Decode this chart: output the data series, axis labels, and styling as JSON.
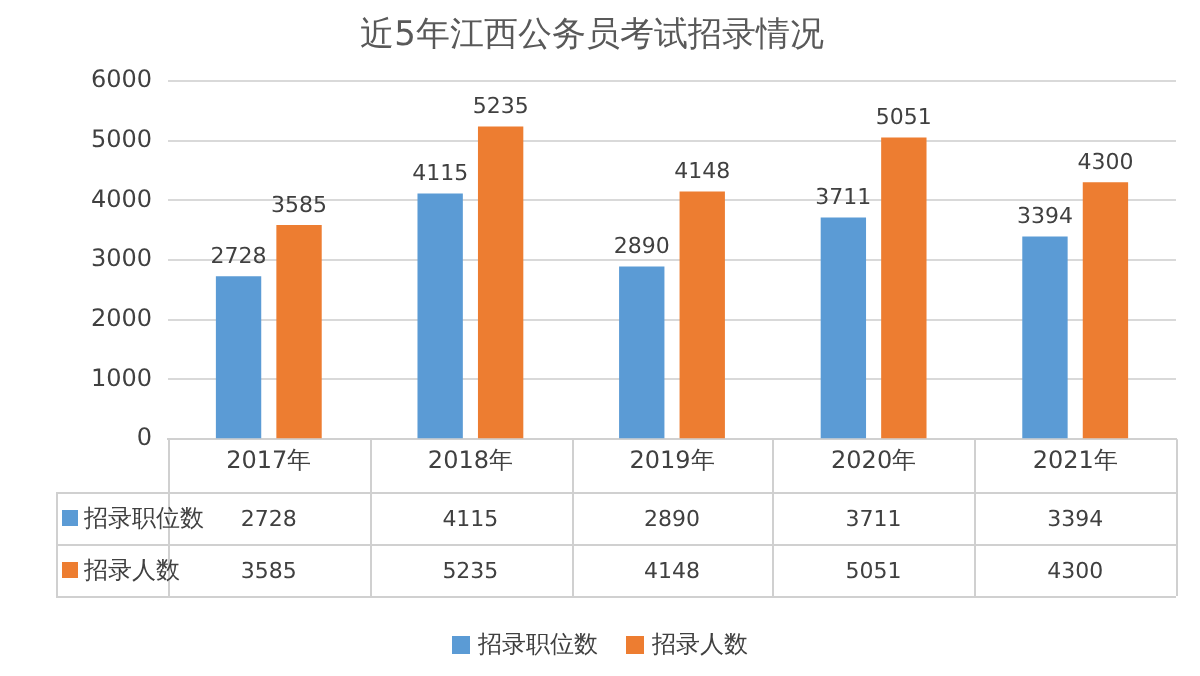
{
  "chart_data": {
    "type": "bar",
    "title": "近5年江西公务员考试招录情况",
    "categories": [
      "2017年",
      "2018年",
      "2019年",
      "2020年",
      "2021年"
    ],
    "series": [
      {
        "name": "招录职位数",
        "color": "#5b9bd5",
        "values": [
          2728,
          4115,
          2890,
          3711,
          3394
        ]
      },
      {
        "name": "招录人数",
        "color": "#ed7d31",
        "values": [
          3585,
          5235,
          4148,
          5051,
          4300
        ]
      }
    ],
    "annotations": [
      "2728",
      "4115",
      "2890",
      "3711",
      "3394",
      "3585",
      "5235",
      "4148",
      "5051",
      "4300"
    ],
    "ylim": [
      0,
      6000
    ],
    "yticks": [
      0,
      1000,
      2000,
      3000,
      4000,
      5000,
      6000
    ],
    "grid": "y",
    "legend": "bottom",
    "data_labels": true
  }
}
